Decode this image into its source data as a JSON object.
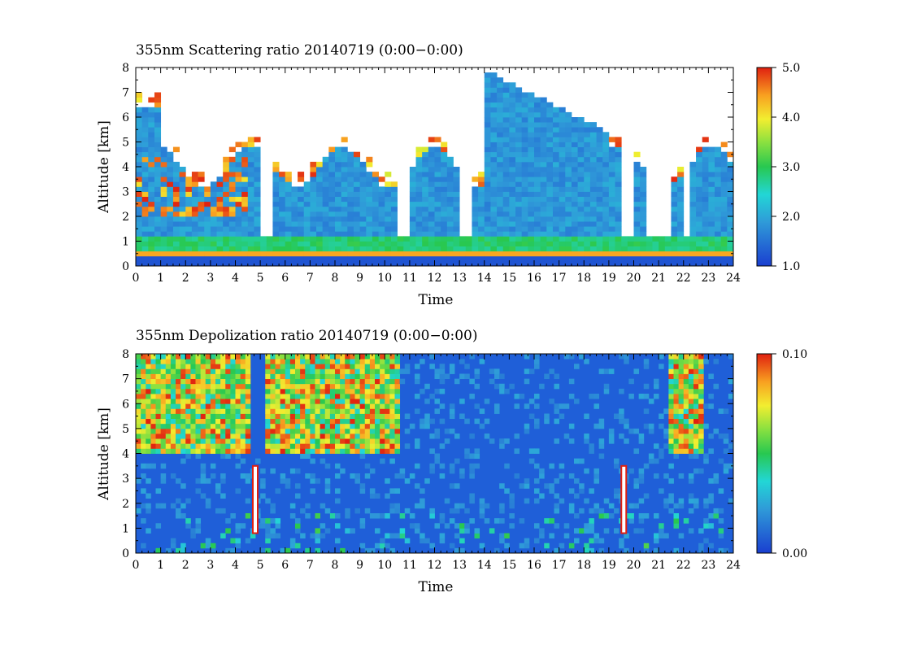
{
  "chart_data": [
    {
      "type": "heatmap",
      "title": "355nm Scattering ratio  20140719 (0:00−0:00)",
      "xlabel": "Time",
      "ylabel": "Altitude [km]",
      "xlim": [
        0,
        24
      ],
      "ylim": [
        0,
        8
      ],
      "x_ticks": [
        "0",
        "1",
        "2",
        "3",
        "4",
        "5",
        "6",
        "7",
        "8",
        "9",
        "10",
        "11",
        "12",
        "13",
        "14",
        "15",
        "16",
        "17",
        "18",
        "19",
        "20",
        "21",
        "22",
        "23",
        "24"
      ],
      "y_ticks": [
        "0",
        "1",
        "2",
        "3",
        "4",
        "5",
        "6",
        "7",
        "8"
      ],
      "colorbar": {
        "min": 1.0,
        "max": 5.0,
        "ticks": [
          "1.0",
          "2.0",
          "3.0",
          "4.0",
          "5.0"
        ]
      },
      "features": {
        "near_surface_layer_km": [
          0.4,
          1.2
        ],
        "clear_gaps_hours": [
          [
            4.9,
            5.5
          ],
          [
            10.6,
            11.0
          ],
          [
            13.0,
            13.6
          ],
          [
            19.5,
            19.9
          ],
          [
            20.5,
            21.4
          ],
          [
            22.0,
            22.2
          ]
        ],
        "cloud_top_band_km": [
          3.8,
          5.4
        ],
        "high_aerosol_plume_hours": [
          14.0,
          19.0
        ],
        "high_aerosol_plume_top_km": 7.9
      }
    },
    {
      "type": "heatmap",
      "title": "355nm Depolization ratio  20140719 (0:00−0:00)",
      "xlabel": "Time",
      "ylabel": "Altitude [km]",
      "xlim": [
        0,
        24
      ],
      "ylim": [
        0,
        8
      ],
      "x_ticks": [
        "0",
        "1",
        "2",
        "3",
        "4",
        "5",
        "6",
        "7",
        "8",
        "9",
        "10",
        "11",
        "12",
        "13",
        "14",
        "15",
        "16",
        "17",
        "18",
        "19",
        "20",
        "21",
        "22",
        "23",
        "24"
      ],
      "y_ticks": [
        "0",
        "1",
        "2",
        "3",
        "4",
        "5",
        "6",
        "7",
        "8"
      ],
      "colorbar": {
        "min": 0.0,
        "max": 0.1,
        "ticks": [
          "0.00",
          "0.10"
        ]
      },
      "features": {
        "noisy_high_depol_hours": [
          [
            0,
            10.5
          ],
          [
            21.3,
            22.8
          ]
        ],
        "noisy_region_base_km": 4.0,
        "high_depol_columns_hours": [
          4.8,
          19.6
        ],
        "background_value": 0.02
      }
    }
  ]
}
